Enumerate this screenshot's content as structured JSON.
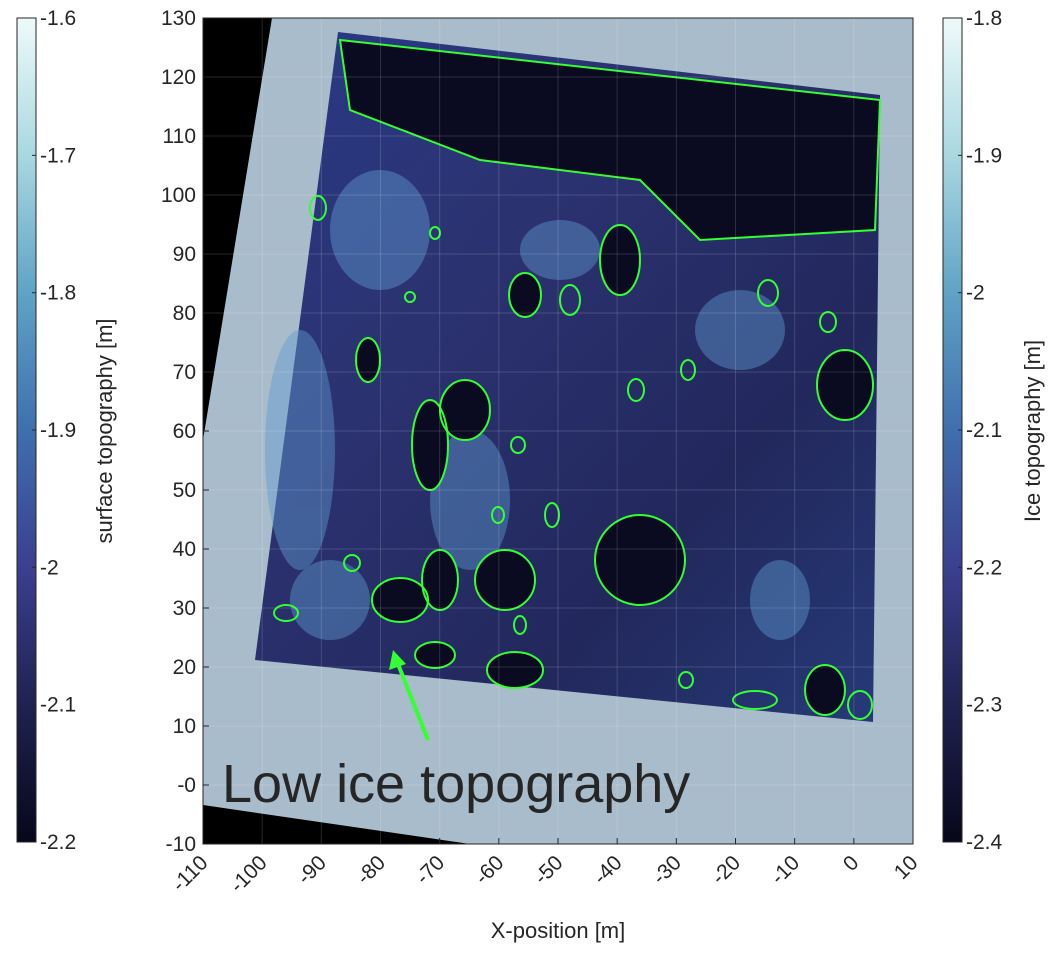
{
  "chart_data": {
    "type": "heatmap",
    "xlabel": "X-position [m]",
    "xlim": [
      -110,
      10
    ],
    "xticks": [
      -110,
      -100,
      -90,
      -80,
      -70,
      -60,
      -50,
      -40,
      -30,
      -20,
      -10,
      0,
      10
    ],
    "ylim": [
      -10,
      130
    ],
    "yticks": [
      {
        "value": -10,
        "label": "-10"
      },
      {
        "value": 0,
        "label": "-0"
      },
      10,
      20,
      30,
      40,
      50,
      60,
      70,
      80,
      90,
      100,
      110,
      120,
      130
    ],
    "grid": true,
    "colormap": [
      "#07071a",
      "#1f2250",
      "#3b3f8f",
      "#3f6fae",
      "#5fa3c6",
      "#a9d8e0",
      "#eefafa"
    ],
    "colorbars": [
      {
        "label": "surface topography [m]",
        "lim": [
          -2.2,
          -1.6
        ],
        "ticks": [
          -1.6,
          -1.7,
          -1.8,
          -1.9,
          -2,
          -2.1,
          -2.2
        ],
        "position": "left"
      },
      {
        "label": "Ice topography [m]",
        "lim": [
          -2.4,
          -1.8
        ],
        "ticks": [
          -1.8,
          -1.9,
          -2,
          -2.1,
          -2.2,
          -2.3,
          -2.4
        ],
        "position": "right"
      }
    ],
    "annotation": {
      "text": "Low ice topography",
      "color": "#33ff33"
    }
  }
}
